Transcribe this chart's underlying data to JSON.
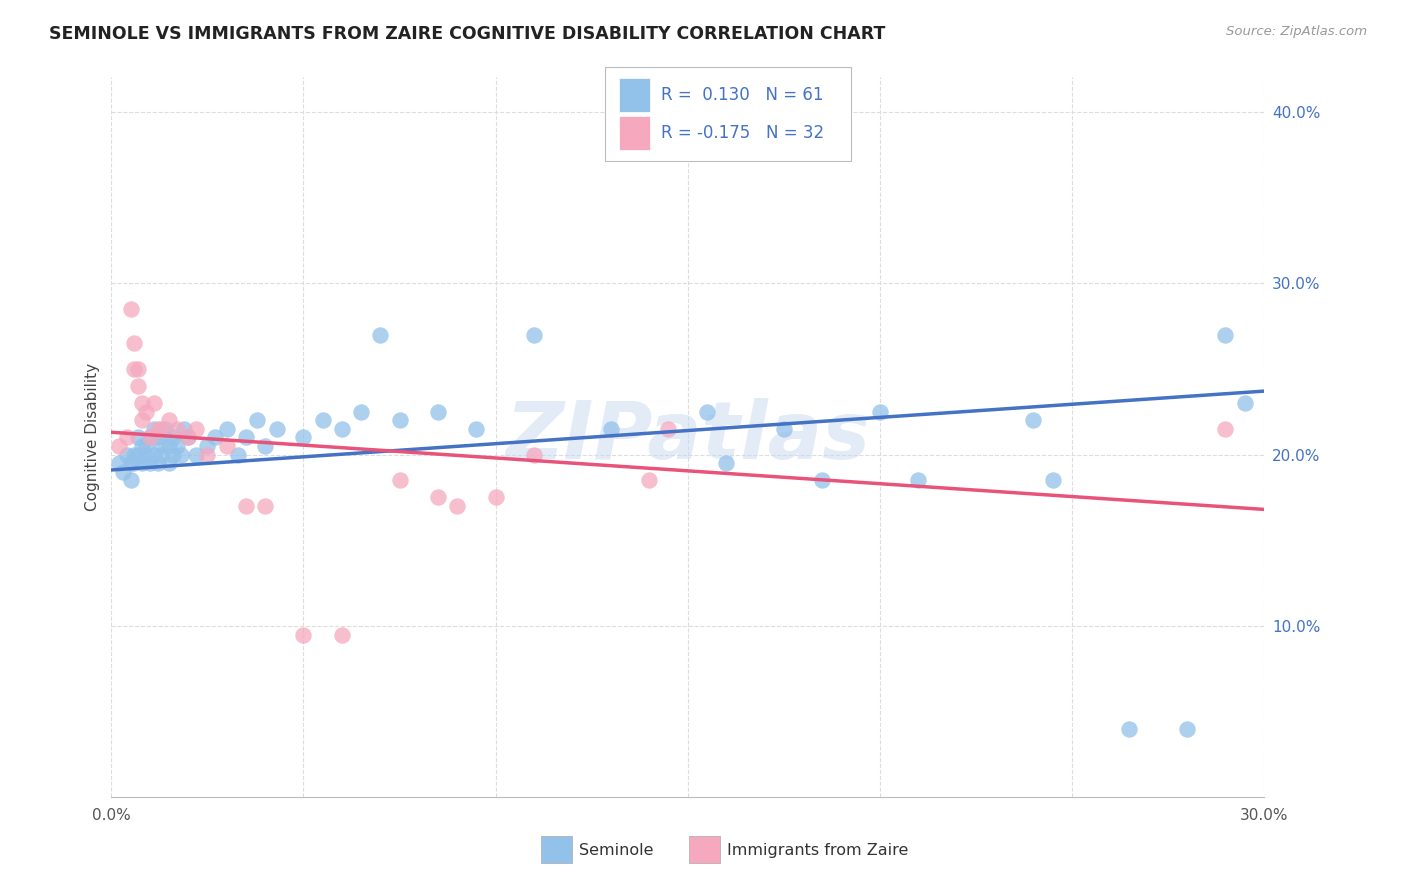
{
  "title": "SEMINOLE VS IMMIGRANTS FROM ZAIRE COGNITIVE DISABILITY CORRELATION CHART",
  "source": "Source: ZipAtlas.com",
  "ylabel": "Cognitive Disability",
  "xlim": [
    0.0,
    0.3
  ],
  "ylim": [
    0.0,
    0.42
  ],
  "x_tick_positions": [
    0.0,
    0.3
  ],
  "x_tick_labels": [
    "0.0%",
    "30.0%"
  ],
  "y_ticks": [
    0.1,
    0.2,
    0.3,
    0.4
  ],
  "y_tick_labels_right": [
    "10.0%",
    "20.0%",
    "30.0%",
    "40.0%"
  ],
  "seminole_color": "#92C1E9",
  "zaire_color": "#F5A8BE",
  "seminole_R": 0.13,
  "seminole_N": 61,
  "zaire_R": -0.175,
  "zaire_N": 32,
  "seminole_line_color": "#4472C4",
  "zaire_line_color": "#E8537A",
  "watermark": "ZIPatlas",
  "seminole_line_x0": 0.0,
  "seminole_line_y0": 0.191,
  "seminole_line_x1": 0.3,
  "seminole_line_y1": 0.237,
  "zaire_line_x0": 0.0,
  "zaire_line_y0": 0.213,
  "zaire_line_x1": 0.3,
  "zaire_line_y1": 0.168,
  "seminole_x": [
    0.002,
    0.003,
    0.004,
    0.005,
    0.005,
    0.006,
    0.006,
    0.007,
    0.007,
    0.008,
    0.008,
    0.009,
    0.009,
    0.01,
    0.01,
    0.011,
    0.011,
    0.012,
    0.012,
    0.013,
    0.013,
    0.014,
    0.015,
    0.015,
    0.016,
    0.016,
    0.017,
    0.018,
    0.019,
    0.02,
    0.022,
    0.025,
    0.027,
    0.03,
    0.033,
    0.035,
    0.038,
    0.04,
    0.043,
    0.05,
    0.055,
    0.06,
    0.065,
    0.07,
    0.075,
    0.085,
    0.095,
    0.11,
    0.13,
    0.155,
    0.16,
    0.175,
    0.185,
    0.2,
    0.21,
    0.24,
    0.245,
    0.265,
    0.28,
    0.29,
    0.295
  ],
  "seminole_y": [
    0.195,
    0.19,
    0.2,
    0.195,
    0.185,
    0.2,
    0.195,
    0.21,
    0.2,
    0.205,
    0.195,
    0.205,
    0.2,
    0.21,
    0.195,
    0.215,
    0.2,
    0.195,
    0.21,
    0.205,
    0.2,
    0.215,
    0.195,
    0.205,
    0.2,
    0.21,
    0.205,
    0.2,
    0.215,
    0.21,
    0.2,
    0.205,
    0.21,
    0.215,
    0.2,
    0.21,
    0.22,
    0.205,
    0.215,
    0.21,
    0.22,
    0.215,
    0.225,
    0.27,
    0.22,
    0.225,
    0.215,
    0.27,
    0.215,
    0.225,
    0.195,
    0.215,
    0.185,
    0.225,
    0.185,
    0.22,
    0.185,
    0.04,
    0.04,
    0.27,
    0.23
  ],
  "zaire_x": [
    0.002,
    0.004,
    0.005,
    0.006,
    0.006,
    0.007,
    0.007,
    0.008,
    0.008,
    0.009,
    0.01,
    0.011,
    0.012,
    0.013,
    0.015,
    0.017,
    0.02,
    0.022,
    0.025,
    0.03,
    0.035,
    0.04,
    0.05,
    0.06,
    0.075,
    0.085,
    0.09,
    0.1,
    0.11,
    0.14,
    0.145,
    0.29
  ],
  "zaire_y": [
    0.205,
    0.21,
    0.285,
    0.25,
    0.265,
    0.24,
    0.25,
    0.22,
    0.23,
    0.225,
    0.21,
    0.23,
    0.215,
    0.215,
    0.22,
    0.215,
    0.21,
    0.215,
    0.2,
    0.205,
    0.17,
    0.17,
    0.095,
    0.095,
    0.185,
    0.175,
    0.17,
    0.175,
    0.2,
    0.185,
    0.215,
    0.215
  ]
}
